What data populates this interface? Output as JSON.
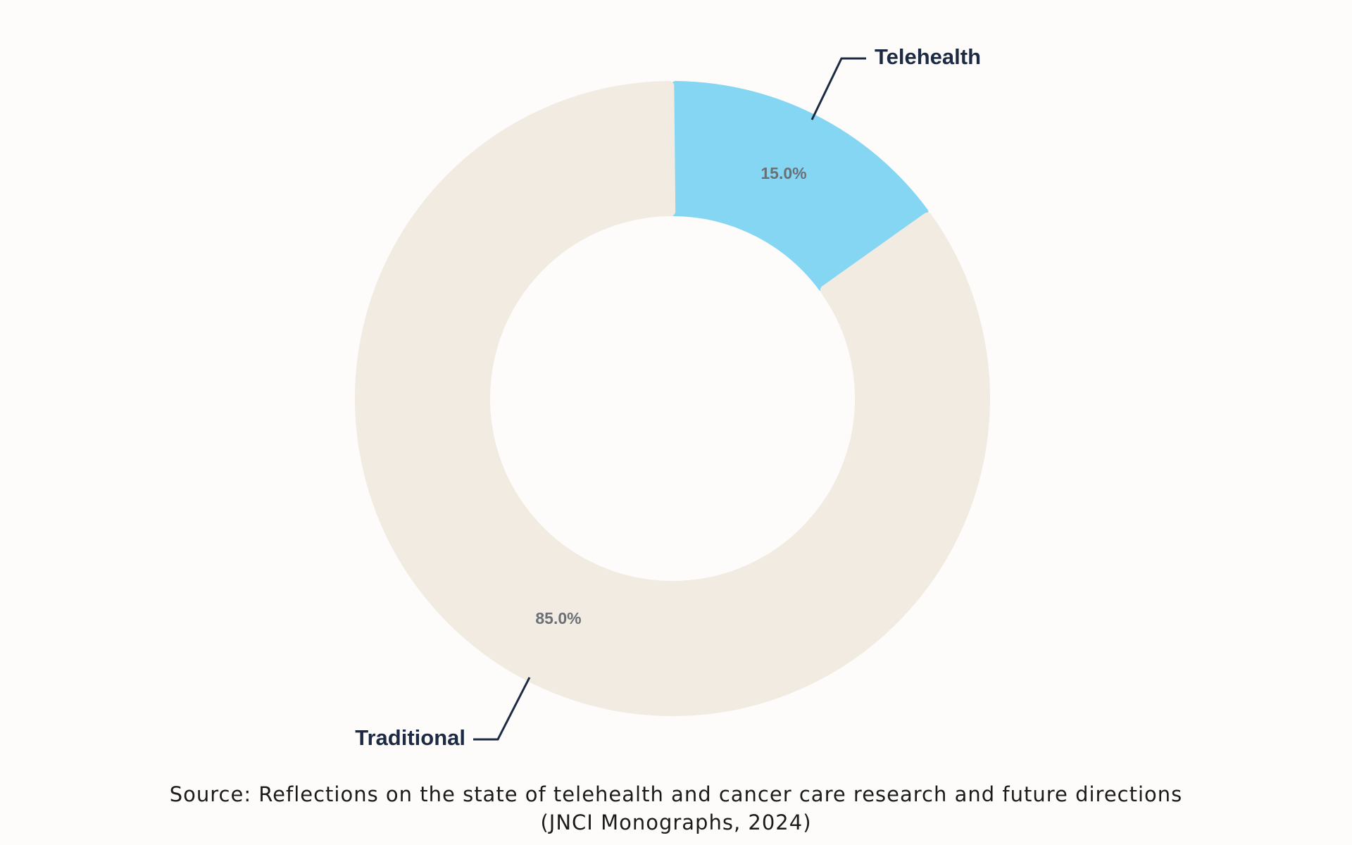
{
  "chart_data": {
    "type": "pie",
    "variant": "donut",
    "categories": [
      "Telehealth",
      "Traditional"
    ],
    "values": [
      15.0,
      85.0
    ],
    "value_labels": [
      "15.0%",
      "85.0%"
    ],
    "colors": [
      "#84d6f2",
      "#f2ebe2"
    ],
    "title": "",
    "legend": "none"
  },
  "source": {
    "line1": "Source: Reflections on the state of telehealth and cancer care research and future directions",
    "line2": "(JNCI Monographs, 2024)"
  }
}
